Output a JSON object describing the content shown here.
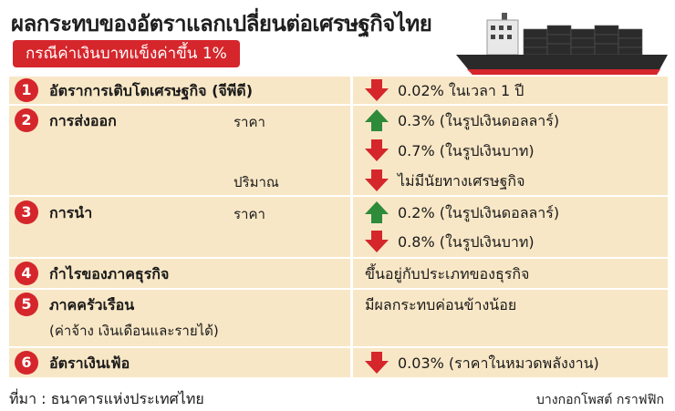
{
  "header": {
    "title": "ผลกระทบของอัตราแลกเปลี่ยนต่อเศรษฐกิจไทย",
    "subtitle": "กรณีค่าเงินบาทแข็งค่าขึ้น 1%"
  },
  "colors": {
    "accent": "#d5262c",
    "band": "#f8e7c6",
    "up": "#2e8b3a",
    "down": "#d5262c"
  },
  "rows": [
    {
      "num": "1",
      "label": "อัตราการเติบโตเศรษฐกิจ (จีพีดี)",
      "values": [
        {
          "arrow": "down",
          "text": "0.02% ในเวลา 1 ปี"
        }
      ]
    },
    {
      "num": "2",
      "label": "การส่งออก",
      "sub_price": "ราคา",
      "sub_volume": "ปริมาณ",
      "values": [
        {
          "arrow": "up",
          "text": "0.3% (ในรูปเงินดอลลาร์)"
        },
        {
          "arrow": "down",
          "text": "0.7% (ในรูปเงินบาท)"
        },
        {
          "arrow": "down",
          "text": "ไม่มีนัยทางเศรษฐกิจ"
        }
      ]
    },
    {
      "num": "3",
      "label": "การนำ",
      "sub_price": "ราคา",
      "values": [
        {
          "arrow": "up",
          "text": "0.2% (ในรูปเงินดอลลาร์)"
        },
        {
          "arrow": "down",
          "text": "0.8% (ในรูปเงินบาท)"
        }
      ]
    },
    {
      "num": "4",
      "label": "กำไรของภาคธุรกิจ",
      "values": [
        {
          "arrow": "none",
          "text": "ขึ้นอยู่กับประเภทของธุรกิจ"
        }
      ]
    },
    {
      "num": "5",
      "label": "ภาคครัวเรือน",
      "note": "(ค่าจ้าง เงินเดือนและรายได้)",
      "values": [
        {
          "arrow": "none",
          "text": "มีผลกระทบค่อนข้างน้อย"
        }
      ]
    },
    {
      "num": "6",
      "label": "อัตราเงินเฟ้อ",
      "values": [
        {
          "arrow": "down",
          "text": "0.03% (ราคาในหมวดพลังงาน)"
        }
      ]
    }
  ],
  "footer": {
    "source": "ที่มา : ธนาคารแห่งประเทศไทย",
    "credit": "บางกอกโพสต์ กราฟฟิก"
  }
}
